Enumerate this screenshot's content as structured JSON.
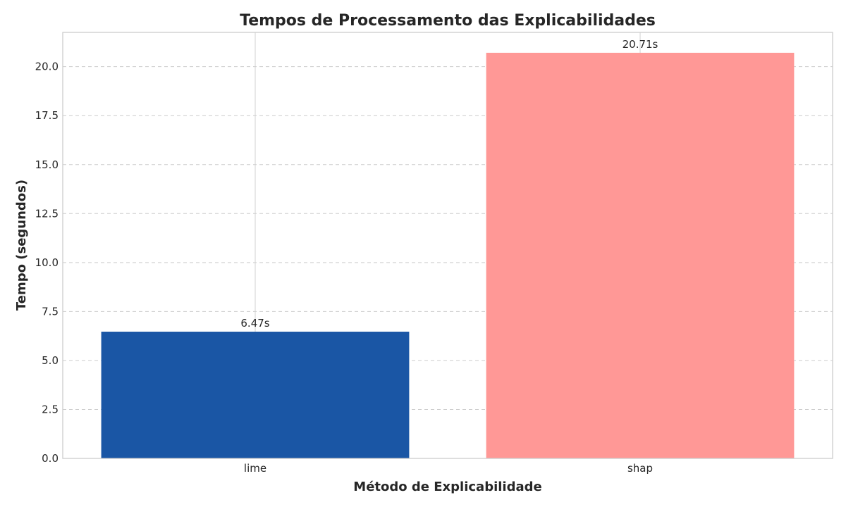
{
  "chart_data": {
    "type": "bar",
    "title": "Tempos de Processamento das Explicabilidades",
    "xlabel": "Método de Explicabilidade",
    "ylabel": "Tempo (segundos)",
    "categories": [
      "lime",
      "shap"
    ],
    "values": [
      6.47,
      20.71
    ],
    "data_labels": [
      "6.47s",
      "20.71s"
    ],
    "colors": [
      "#1a56a5",
      "#ff9896"
    ],
    "ylim": [
      0,
      21.75
    ],
    "yticks": [
      0.0,
      2.5,
      5.0,
      7.5,
      10.0,
      12.5,
      15.0,
      17.5,
      20.0
    ],
    "ytick_labels": [
      "0.0",
      "2.5",
      "5.0",
      "7.5",
      "10.0",
      "12.5",
      "15.0",
      "17.5",
      "20.0"
    ],
    "grid": true,
    "legend": "none"
  }
}
